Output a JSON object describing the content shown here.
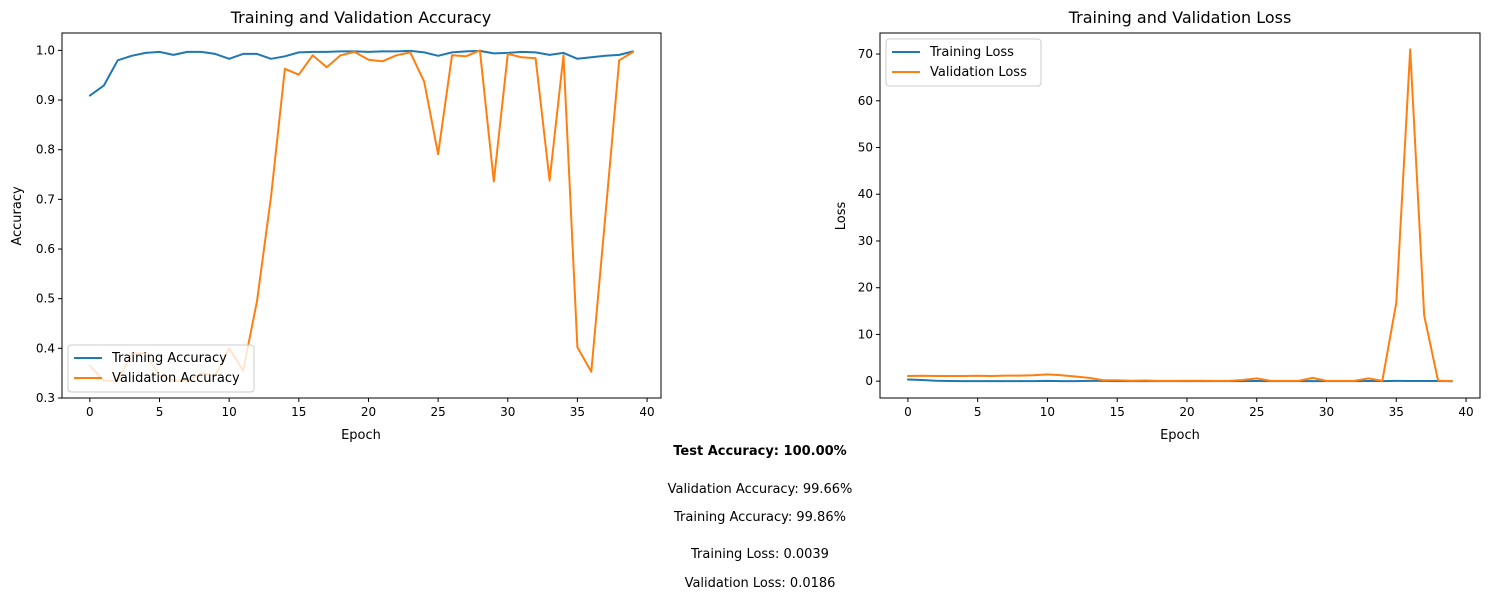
{
  "charts": [
    {
      "type": "line",
      "title": "Training and Validation Accuracy",
      "xlabel": "Epoch",
      "ylabel": "Accuracy",
      "xlim": [
        -2,
        41
      ],
      "ylim": [
        0.3,
        1.035
      ],
      "xticks": [
        0,
        5,
        10,
        15,
        20,
        25,
        30,
        35,
        40
      ],
      "yticks": [
        0.3,
        0.4,
        0.5,
        0.6,
        0.7,
        0.8,
        0.9,
        1.0
      ],
      "ytick_labels": [
        "0.3",
        "0.4",
        "0.5",
        "0.6",
        "0.7",
        "0.8",
        "0.9",
        "1.0"
      ],
      "legend_position": "lower-left",
      "x": [
        0,
        1,
        2,
        3,
        4,
        5,
        6,
        7,
        8,
        9,
        10,
        11,
        12,
        13,
        14,
        15,
        16,
        17,
        18,
        19,
        20,
        21,
        22,
        23,
        24,
        25,
        26,
        27,
        28,
        29,
        30,
        31,
        32,
        33,
        34,
        35,
        36,
        37,
        38,
        39
      ],
      "series": [
        {
          "name": "Training Accuracy",
          "color": "#1f77b4",
          "values": [
            0.909,
            0.929,
            0.98,
            0.989,
            0.995,
            0.997,
            0.991,
            0.997,
            0.997,
            0.993,
            0.983,
            0.993,
            0.993,
            0.983,
            0.988,
            0.996,
            0.997,
            0.997,
            0.998,
            0.998,
            0.997,
            0.998,
            0.998,
            0.999,
            0.996,
            0.989,
            0.996,
            0.998,
            0.999,
            0.994,
            0.995,
            0.997,
            0.996,
            0.991,
            0.995,
            0.983,
            0.986,
            0.989,
            0.991,
            0.998
          ]
        },
        {
          "name": "Validation Accuracy",
          "color": "#ff7f0e",
          "values": [
            0.365,
            0.335,
            0.335,
            0.39,
            0.39,
            0.345,
            0.335,
            0.335,
            0.35,
            0.345,
            0.4,
            0.355,
            0.495,
            0.705,
            0.963,
            0.951,
            0.99,
            0.966,
            0.99,
            0.997,
            0.981,
            0.978,
            0.99,
            0.996,
            0.937,
            0.791,
            0.99,
            0.988,
            1.0,
            0.736,
            0.993,
            0.986,
            0.984,
            0.738,
            0.99,
            0.402,
            0.353,
            0.665,
            0.98,
            0.997
          ]
        }
      ]
    },
    {
      "type": "line",
      "title": "Training and Validation Loss",
      "xlabel": "Epoch",
      "ylabel": "Loss",
      "xlim": [
        -2,
        41
      ],
      "ylim": [
        -3.6,
        74.5
      ],
      "xticks": [
        0,
        5,
        10,
        15,
        20,
        25,
        30,
        35,
        40
      ],
      "yticks": [
        0,
        10,
        20,
        30,
        40,
        50,
        60,
        70
      ],
      "ytick_labels": [
        "0",
        "10",
        "20",
        "30",
        "40",
        "50",
        "60",
        "70"
      ],
      "legend_position": "upper-left",
      "x": [
        0,
        1,
        2,
        3,
        4,
        5,
        6,
        7,
        8,
        9,
        10,
        11,
        12,
        13,
        14,
        15,
        16,
        17,
        18,
        19,
        20,
        21,
        22,
        23,
        24,
        25,
        26,
        27,
        28,
        29,
        30,
        31,
        32,
        33,
        34,
        35,
        36,
        37,
        38,
        39
      ],
      "series": [
        {
          "name": "Training Loss",
          "color": "#1f77b4",
          "values": [
            0.35,
            0.25,
            0.08,
            0.04,
            0.02,
            0.02,
            0.02,
            0.02,
            0.02,
            0.02,
            0.06,
            0.02,
            0.02,
            0.05,
            0.05,
            0.02,
            0.01,
            0.01,
            0.01,
            0.01,
            0.01,
            0.01,
            0.01,
            0.01,
            0.02,
            0.03,
            0.01,
            0.01,
            0.01,
            0.02,
            0.02,
            0.01,
            0.01,
            0.03,
            0.02,
            0.05,
            0.04,
            0.03,
            0.03,
            0.004
          ]
        },
        {
          "name": "Validation Loss",
          "color": "#ff7f0e",
          "values": [
            1.1,
            1.15,
            1.1,
            1.1,
            1.1,
            1.15,
            1.1,
            1.2,
            1.2,
            1.25,
            1.45,
            1.25,
            1.0,
            0.7,
            0.2,
            0.2,
            0.1,
            0.15,
            0.05,
            0.05,
            0.1,
            0.1,
            0.05,
            0.05,
            0.25,
            0.6,
            0.05,
            0.05,
            0.05,
            0.7,
            0.05,
            0.05,
            0.05,
            0.6,
            0.05,
            16.8,
            71.0,
            14.0,
            0.1,
            0.02
          ]
        }
      ]
    }
  ],
  "metrics": {
    "test_accuracy": "Test Accuracy: 100.00%",
    "validation_accuracy": "Validation Accuracy: 99.66%",
    "training_accuracy": "Training Accuracy: 99.86%",
    "training_loss": "Training Loss: 0.0039",
    "validation_loss": "Validation Loss: 0.0186"
  }
}
